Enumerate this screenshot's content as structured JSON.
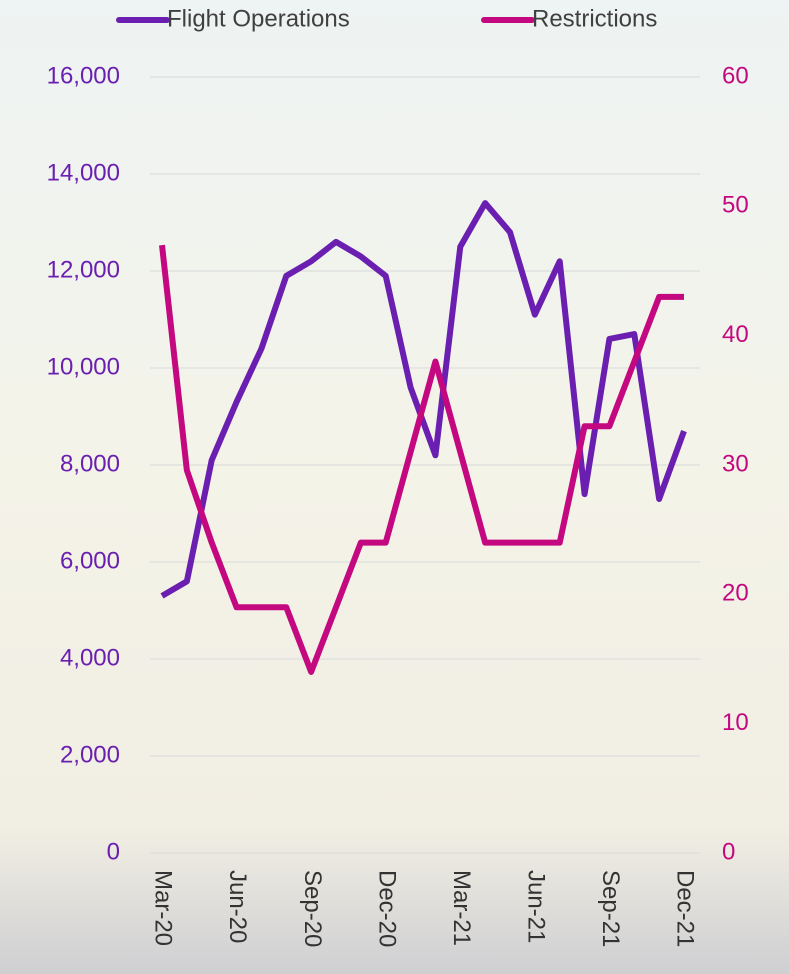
{
  "chart_data": {
    "type": "line",
    "categories": [
      "Mar-20",
      null,
      null,
      "Jun-20",
      null,
      null,
      "Sep-20",
      null,
      null,
      "Dec-20",
      null,
      null,
      "Mar-21",
      null,
      null,
      "Jun-21",
      null,
      null,
      "Sep-21",
      null,
      null,
      "Dec-21"
    ],
    "series": [
      {
        "name": "Flight Operations",
        "color": "#6a1fb0",
        "axis": "y",
        "values": [
          5300,
          5600,
          8100,
          9300,
          10400,
          11900,
          12200,
          12600,
          12300,
          11900,
          9600,
          8200,
          12500,
          13400,
          12800,
          11100,
          12200,
          7400,
          10600,
          10700,
          7300,
          8700
        ]
      },
      {
        "name": "Restrictions",
        "color": "#c4087f",
        "axis": "y2",
        "values": [
          47,
          29.6,
          24,
          19,
          19,
          19,
          14,
          19,
          24,
          24,
          31,
          38,
          31,
          24,
          24,
          24,
          24,
          33,
          33,
          38,
          43,
          43
        ]
      }
    ],
    "ylim": [
      0,
      16000
    ],
    "yticks": [
      0,
      {
        "value": 2000,
        "label": "2,000"
      },
      {
        "value": 4000,
        "label": "4,000"
      },
      {
        "value": 6000,
        "label": "6,000"
      },
      {
        "value": 8000,
        "label": "8,000"
      },
      {
        "value": 10000,
        "label": "10,000"
      },
      {
        "value": 12000,
        "label": "12,000"
      },
      {
        "value": 14000,
        "label": "14,000"
      },
      {
        "value": 16000,
        "label": "16,000"
      }
    ],
    "y2lim": [
      0,
      60
    ],
    "y2ticks": [
      0,
      10,
      20,
      30,
      40,
      50,
      60
    ],
    "grid": true,
    "legend": "top"
  }
}
